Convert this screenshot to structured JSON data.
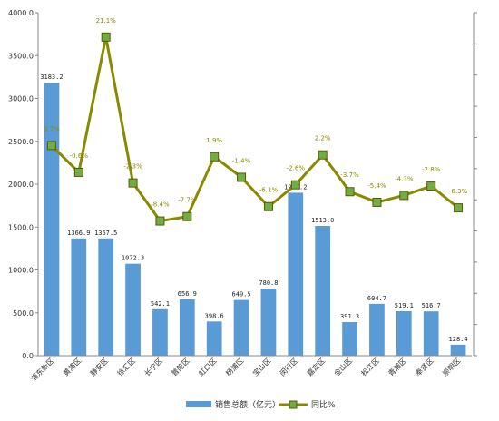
{
  "chart_data": {
    "type": "bar+line",
    "categories": [
      "浦东新区",
      "黄浦区",
      "静安区",
      "徐汇区",
      "长宁区",
      "普陀区",
      "虹口区",
      "杨浦区",
      "宝山区",
      "闵行区",
      "嘉定区",
      "金山区",
      "松江区",
      "青浦区",
      "奉贤区",
      "崇明区"
    ],
    "bar_labels": [
      "3183.2",
      "1366.9",
      "1367.5",
      "1072.3",
      "542.1",
      "656.9",
      "398.6",
      "649.5",
      "780.8",
      "1900.2",
      "1513.0",
      "391.3",
      "604.7",
      "519.1",
      "516.7",
      "128.4"
    ],
    "line_labels": [
      "3.7%",
      "-0.6%",
      "21.1%",
      "-2.3%",
      "-8.4%",
      "-7.7%",
      "1.9%",
      "-1.4%",
      "-6.1%",
      "-2.6%",
      "2.2%",
      "-3.7%",
      "-5.4%",
      "-4.3%",
      "-2.8%",
      "-6.3%"
    ],
    "series": [
      {
        "name": "销售总额（亿元）",
        "type": "bar",
        "color": "#5b9bd5",
        "values": [
          3183.2,
          1366.9,
          1367.5,
          1072.3,
          542.1,
          656.9,
          398.6,
          649.5,
          780.8,
          1900.2,
          1513.0,
          391.3,
          604.7,
          519.1,
          516.7,
          128.4
        ]
      },
      {
        "name": "同比%",
        "type": "line",
        "color": "#8a8a00",
        "marker_color": "#70ad47",
        "values": [
          3.7,
          -0.6,
          21.1,
          -2.3,
          -8.4,
          -7.7,
          1.9,
          -1.4,
          -6.1,
          -2.6,
          2.2,
          -3.7,
          -5.4,
          -4.3,
          -2.8,
          -6.3
        ]
      }
    ],
    "left_axis": {
      "min": 0,
      "max": 4000,
      "step": 500,
      "ticks": [
        "0.0",
        "500.0",
        "1000.0",
        "1500.0",
        "2000.0",
        "2500.0",
        "3000.0",
        "3500.0",
        "4000.0"
      ]
    },
    "right_axis": {
      "min": -30,
      "max": 25
    },
    "grid": false,
    "legend_position": "bottom"
  }
}
